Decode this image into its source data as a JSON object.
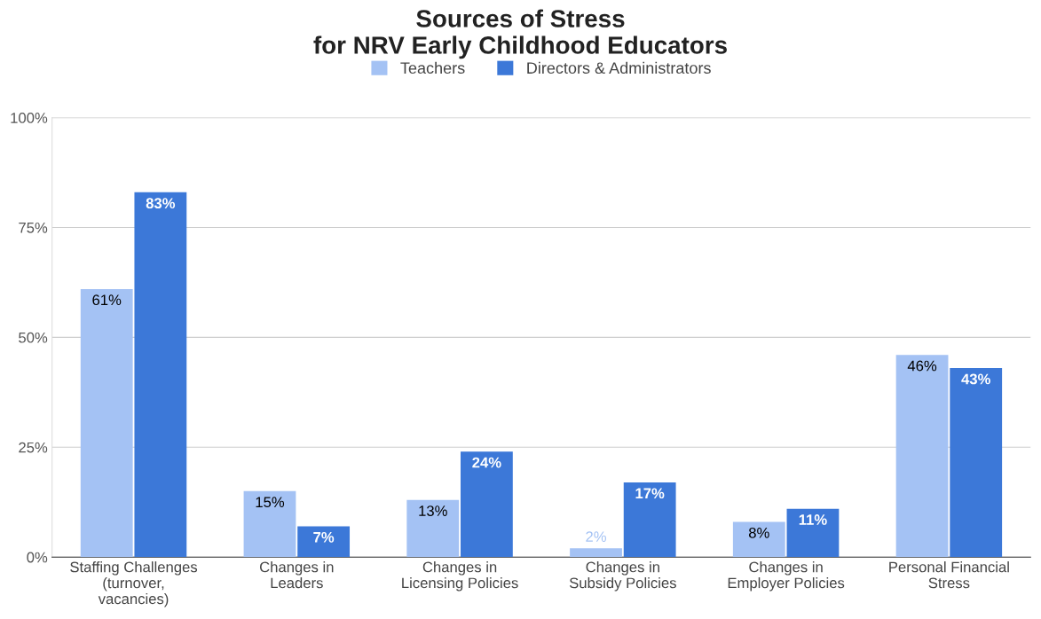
{
  "chart_data": {
    "type": "bar",
    "title": "Sources of Stress\nfor NRV Early Childhood Educators",
    "categories": [
      "Staffing Challenges\n(turnover,\nvacancies)",
      "Changes in\nLeaders",
      "Changes in\nLicensing Policies",
      "Changes in\nSubsidy Policies",
      "Changes in\nEmployer Policies",
      "Personal Financial\nStress"
    ],
    "series": [
      {
        "name": "Teachers",
        "color": "#a4c2f4",
        "values": [
          61,
          15,
          13,
          2,
          8,
          46
        ],
        "value_labels": [
          "61%",
          "15%",
          "13%",
          "2%",
          "8%",
          "46%"
        ]
      },
      {
        "name": "Directors & Administrators",
        "color": "#3c78d8",
        "values": [
          83,
          7,
          24,
          17,
          11,
          43
        ],
        "value_labels": [
          "83%",
          "7%",
          "24%",
          "17%",
          "11%",
          "43%"
        ]
      }
    ],
    "ylim": [
      0,
      100
    ],
    "yticks": [
      {
        "value": 0,
        "label": "0%"
      },
      {
        "value": 25,
        "label": "25%"
      },
      {
        "value": 50,
        "label": "50%"
      },
      {
        "value": 75,
        "label": "75%"
      },
      {
        "value": 100,
        "label": "100%"
      }
    ],
    "grid": "y",
    "legend": "top"
  }
}
